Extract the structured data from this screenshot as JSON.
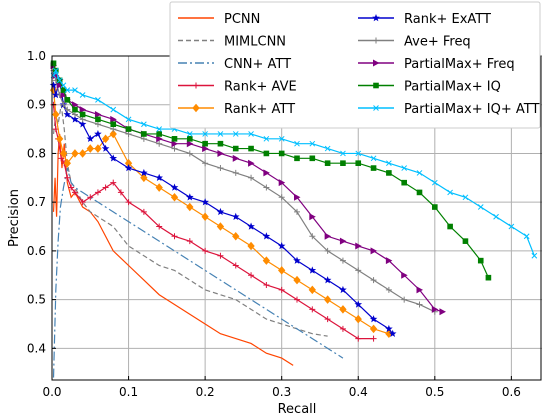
{
  "chart_data": {
    "type": "line",
    "xlabel": "Recall",
    "ylabel": "Precision",
    "xlim": [
      0.0,
      0.64
    ],
    "ylim": [
      0.335,
      1.0
    ],
    "xticks": [
      0.0,
      0.1,
      0.2,
      0.3,
      0.4,
      0.5,
      0.6
    ],
    "xtick_labels": [
      "0.0",
      "0.1",
      "0.2",
      "0.3",
      "0.4",
      "0.5",
      "0.6"
    ],
    "yticks": [
      0.4,
      0.5,
      0.6,
      0.7,
      0.8,
      0.9,
      1.0
    ],
    "ytick_labels": [
      "0.4",
      "0.5",
      "0.6",
      "0.7",
      "0.8",
      "0.9",
      "1.0"
    ],
    "grid": true,
    "legend_position": "top-right",
    "series": [
      {
        "name": "PCNN",
        "color": "#ff4500",
        "dash": "solid",
        "marker": "none",
        "x": [
          0.002,
          0.004,
          0.006,
          0.008,
          0.01,
          0.013,
          0.016,
          0.02,
          0.025,
          0.03,
          0.04,
          0.05,
          0.06,
          0.07,
          0.08,
          0.1,
          0.12,
          0.14,
          0.16,
          0.18,
          0.2,
          0.22,
          0.24,
          0.26,
          0.28,
          0.3,
          0.315
        ],
        "y": [
          0.68,
          0.75,
          0.67,
          0.8,
          0.84,
          0.77,
          0.82,
          0.74,
          0.71,
          0.72,
          0.69,
          0.68,
          0.66,
          0.63,
          0.6,
          0.57,
          0.54,
          0.51,
          0.49,
          0.47,
          0.45,
          0.43,
          0.42,
          0.41,
          0.39,
          0.38,
          0.365
        ]
      },
      {
        "name": "MIMLCNN",
        "color": "#808080",
        "dash": "5,3",
        "marker": "none",
        "x": [
          0.002,
          0.005,
          0.008,
          0.012,
          0.016,
          0.02,
          0.025,
          0.03,
          0.04,
          0.05,
          0.06,
          0.08,
          0.1,
          0.12,
          0.14,
          0.16,
          0.18,
          0.2,
          0.22,
          0.24,
          0.26,
          0.28,
          0.3,
          0.32,
          0.34,
          0.36
        ],
        "y": [
          0.84,
          0.88,
          0.86,
          0.9,
          0.85,
          0.78,
          0.74,
          0.73,
          0.7,
          0.68,
          0.67,
          0.65,
          0.61,
          0.59,
          0.57,
          0.56,
          0.54,
          0.52,
          0.51,
          0.5,
          0.48,
          0.46,
          0.45,
          0.44,
          0.43,
          0.425
        ]
      },
      {
        "name": "CNN+ ATT",
        "color": "#4682b4",
        "dash": "9,3,2,3",
        "marker": "none",
        "x": [
          0.002,
          0.005,
          0.008,
          0.011,
          0.015,
          0.02,
          0.025,
          0.03,
          0.04,
          0.05,
          0.06,
          0.08,
          0.1,
          0.12,
          0.14,
          0.16,
          0.18,
          0.2,
          0.22,
          0.24,
          0.26,
          0.28,
          0.3,
          0.32,
          0.34,
          0.36,
          0.38
        ],
        "y": [
          0.34,
          0.52,
          0.62,
          0.69,
          0.73,
          0.77,
          0.74,
          0.73,
          0.72,
          0.71,
          0.7,
          0.68,
          0.66,
          0.64,
          0.62,
          0.6,
          0.58,
          0.56,
          0.54,
          0.52,
          0.5,
          0.48,
          0.46,
          0.44,
          0.42,
          0.4,
          0.38
        ]
      },
      {
        "name": "Rank+ AVE",
        "color": "#dc143c",
        "dash": "solid",
        "marker": "plus",
        "x": [
          0.002,
          0.005,
          0.008,
          0.012,
          0.016,
          0.02,
          0.025,
          0.03,
          0.04,
          0.05,
          0.06,
          0.07,
          0.08,
          0.09,
          0.1,
          0.12,
          0.14,
          0.16,
          0.18,
          0.2,
          0.22,
          0.24,
          0.26,
          0.28,
          0.3,
          0.32,
          0.34,
          0.36,
          0.38,
          0.4,
          0.42
        ],
        "y": [
          0.9,
          0.85,
          0.83,
          0.79,
          0.78,
          0.75,
          0.73,
          0.72,
          0.7,
          0.71,
          0.72,
          0.73,
          0.74,
          0.72,
          0.7,
          0.68,
          0.65,
          0.63,
          0.62,
          0.6,
          0.59,
          0.57,
          0.55,
          0.53,
          0.52,
          0.5,
          0.48,
          0.46,
          0.44,
          0.42,
          0.42
        ]
      },
      {
        "name": "Rank+ ATT",
        "color": "#ff8c00",
        "dash": "solid",
        "marker": "diamond",
        "x": [
          0.002,
          0.005,
          0.01,
          0.015,
          0.02,
          0.03,
          0.04,
          0.05,
          0.06,
          0.07,
          0.08,
          0.1,
          0.12,
          0.14,
          0.16,
          0.18,
          0.2,
          0.22,
          0.24,
          0.26,
          0.28,
          0.3,
          0.32,
          0.34,
          0.36,
          0.38,
          0.4,
          0.42,
          0.44
        ],
        "y": [
          0.93,
          0.88,
          0.83,
          0.8,
          0.78,
          0.8,
          0.8,
          0.81,
          0.81,
          0.83,
          0.84,
          0.78,
          0.75,
          0.73,
          0.71,
          0.69,
          0.67,
          0.65,
          0.63,
          0.61,
          0.58,
          0.56,
          0.54,
          0.52,
          0.5,
          0.48,
          0.46,
          0.44,
          0.43
        ]
      },
      {
        "name": "Rank+ ExATT",
        "color": "#0000cd",
        "dash": "solid",
        "marker": "star",
        "x": [
          0.002,
          0.005,
          0.01,
          0.015,
          0.02,
          0.03,
          0.04,
          0.05,
          0.06,
          0.07,
          0.08,
          0.1,
          0.12,
          0.14,
          0.16,
          0.18,
          0.2,
          0.22,
          0.24,
          0.26,
          0.28,
          0.3,
          0.32,
          0.34,
          0.36,
          0.38,
          0.4,
          0.42,
          0.44,
          0.445
        ],
        "y": [
          0.94,
          0.92,
          0.95,
          0.9,
          0.88,
          0.87,
          0.86,
          0.83,
          0.84,
          0.81,
          0.79,
          0.77,
          0.76,
          0.75,
          0.73,
          0.71,
          0.7,
          0.68,
          0.67,
          0.65,
          0.63,
          0.61,
          0.58,
          0.56,
          0.54,
          0.52,
          0.49,
          0.46,
          0.44,
          0.43
        ]
      },
      {
        "name": "Ave+ Freq",
        "color": "#808080",
        "dash": "solid",
        "marker": "plus",
        "x": [
          0.002,
          0.005,
          0.01,
          0.015,
          0.02,
          0.03,
          0.04,
          0.06,
          0.08,
          0.1,
          0.12,
          0.14,
          0.16,
          0.18,
          0.2,
          0.22,
          0.24,
          0.26,
          0.28,
          0.3,
          0.32,
          0.34,
          0.36,
          0.38,
          0.4,
          0.42,
          0.44,
          0.46,
          0.48,
          0.5
        ],
        "y": [
          0.97,
          0.95,
          0.92,
          0.9,
          0.89,
          0.88,
          0.87,
          0.86,
          0.85,
          0.84,
          0.83,
          0.82,
          0.81,
          0.8,
          0.78,
          0.77,
          0.76,
          0.75,
          0.73,
          0.71,
          0.68,
          0.63,
          0.6,
          0.58,
          0.56,
          0.54,
          0.52,
          0.5,
          0.49,
          0.475
        ]
      },
      {
        "name": "PartialMax+ Freq",
        "color": "#800080",
        "dash": "solid",
        "marker": "triangle-right",
        "x": [
          0.002,
          0.005,
          0.01,
          0.015,
          0.02,
          0.03,
          0.04,
          0.06,
          0.08,
          0.1,
          0.12,
          0.14,
          0.16,
          0.18,
          0.2,
          0.22,
          0.24,
          0.26,
          0.28,
          0.3,
          0.32,
          0.34,
          0.36,
          0.38,
          0.4,
          0.42,
          0.44,
          0.46,
          0.48,
          0.5,
          0.51
        ],
        "y": [
          0.98,
          0.96,
          0.94,
          0.92,
          0.91,
          0.9,
          0.89,
          0.88,
          0.87,
          0.85,
          0.84,
          0.83,
          0.82,
          0.82,
          0.81,
          0.8,
          0.79,
          0.78,
          0.76,
          0.74,
          0.71,
          0.67,
          0.63,
          0.62,
          0.61,
          0.6,
          0.58,
          0.55,
          0.52,
          0.48,
          0.475
        ]
      },
      {
        "name": "PartialMax+ IQ",
        "color": "#008000",
        "dash": "solid",
        "marker": "square",
        "x": [
          0.002,
          0.005,
          0.01,
          0.015,
          0.02,
          0.03,
          0.04,
          0.06,
          0.08,
          0.1,
          0.12,
          0.14,
          0.16,
          0.18,
          0.2,
          0.22,
          0.24,
          0.26,
          0.28,
          0.3,
          0.32,
          0.34,
          0.36,
          0.38,
          0.4,
          0.42,
          0.44,
          0.46,
          0.48,
          0.5,
          0.52,
          0.54,
          0.56,
          0.57
        ],
        "y": [
          0.985,
          0.97,
          0.95,
          0.93,
          0.91,
          0.89,
          0.88,
          0.87,
          0.86,
          0.85,
          0.84,
          0.84,
          0.83,
          0.83,
          0.82,
          0.82,
          0.81,
          0.81,
          0.8,
          0.8,
          0.79,
          0.79,
          0.78,
          0.78,
          0.78,
          0.77,
          0.76,
          0.74,
          0.72,
          0.69,
          0.65,
          0.62,
          0.58,
          0.545
        ]
      },
      {
        "name": "PartialMax+ IQ+ ATT",
        "color": "#00bfff",
        "dash": "solid",
        "marker": "x",
        "x": [
          0.002,
          0.005,
          0.01,
          0.015,
          0.02,
          0.03,
          0.04,
          0.06,
          0.08,
          0.1,
          0.12,
          0.14,
          0.16,
          0.18,
          0.2,
          0.22,
          0.24,
          0.26,
          0.28,
          0.3,
          0.32,
          0.34,
          0.36,
          0.38,
          0.4,
          0.42,
          0.44,
          0.46,
          0.48,
          0.5,
          0.52,
          0.54,
          0.56,
          0.58,
          0.6,
          0.62,
          0.63
        ],
        "y": [
          0.96,
          0.97,
          0.95,
          0.94,
          0.93,
          0.93,
          0.92,
          0.91,
          0.89,
          0.87,
          0.86,
          0.85,
          0.85,
          0.84,
          0.84,
          0.84,
          0.84,
          0.84,
          0.83,
          0.83,
          0.82,
          0.82,
          0.81,
          0.8,
          0.8,
          0.79,
          0.78,
          0.77,
          0.76,
          0.74,
          0.72,
          0.71,
          0.69,
          0.67,
          0.65,
          0.63,
          0.59
        ]
      }
    ]
  }
}
